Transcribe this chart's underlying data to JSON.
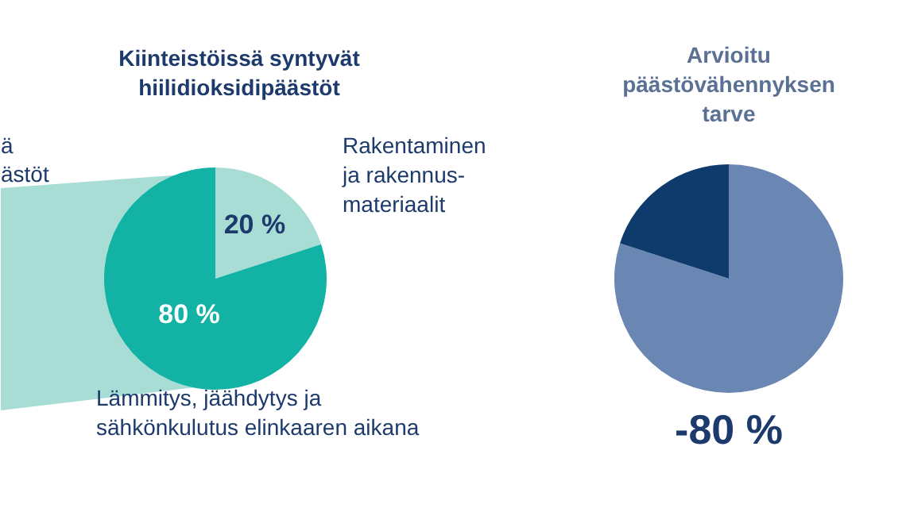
{
  "chart_data": [
    {
      "type": "pie",
      "title": "Kiinteistöissä syntyvät\nhiilidioksidipäästöt",
      "categories": [
        "Rakentaminen\nja rakennus-\nmateriaalit",
        "Lämmitys, jäähdytys ja\nsähkönkulutus elinkaaren aikana"
      ],
      "values": [
        20,
        80
      ],
      "colors": [
        "#a8ddd5",
        "#12b3a4"
      ],
      "value_labels": [
        "20 %",
        "80 %"
      ],
      "annotations": [
        "ä",
        "ästöt"
      ]
    },
    {
      "type": "pie",
      "title": "Arvioitu\npäästövähennyksen\ntarve",
      "categories": [
        null,
        null
      ],
      "values": [
        80,
        20
      ],
      "colors": [
        "#6a86b3",
        "#0e3a6c"
      ],
      "annotations": [
        "-80 %"
      ]
    }
  ]
}
